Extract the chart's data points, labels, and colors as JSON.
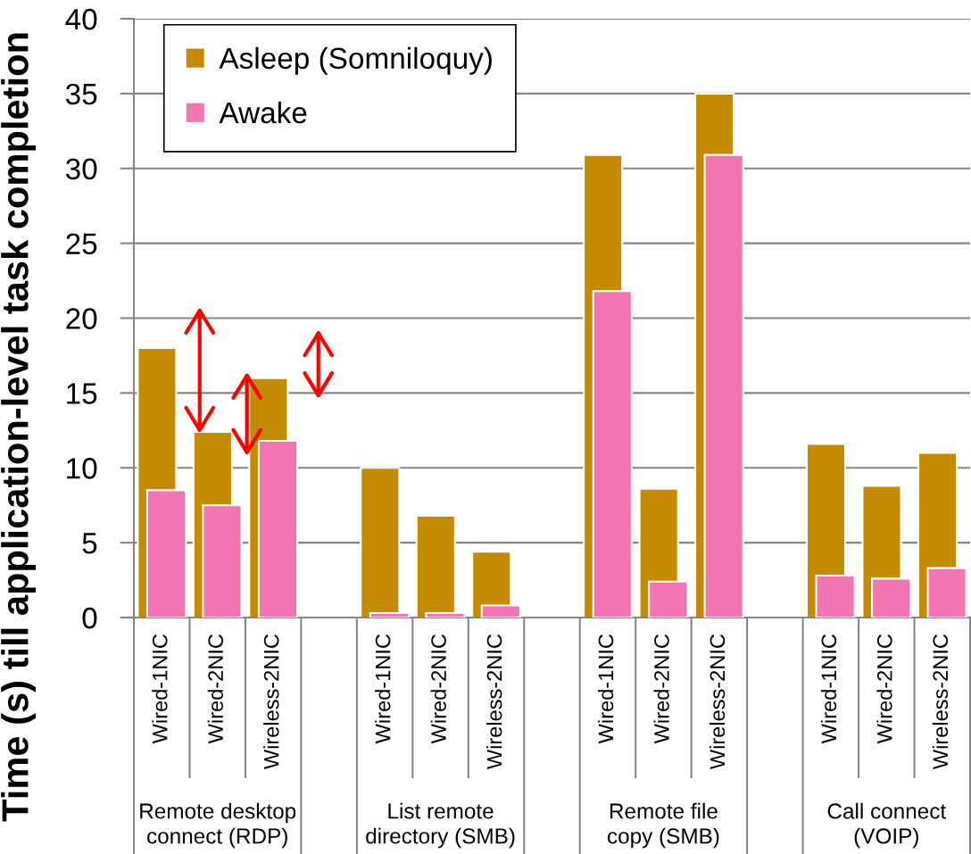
{
  "chart_data": {
    "type": "bar",
    "ylabel": "Time (s) till application-level task completion",
    "categories": [
      "Wired-1NIC",
      "Wired-2NIC",
      "Wireless-2NIC",
      null,
      "Wired-1NIC",
      "Wired-2NIC",
      "Wireless-2NIC",
      null,
      "Wired-1NIC",
      "Wired-2NIC",
      "Wireless-2NIC",
      null,
      "Wired-1NIC",
      "Wired-2NIC",
      "Wireless-2NIC"
    ],
    "series": [
      {
        "name": "Asleep (Somniloquy)",
        "color": "#c48b00",
        "values": [
          18.0,
          12.4,
          16.0,
          null,
          10.0,
          6.8,
          4.4,
          null,
          30.9,
          8.6,
          35.0,
          null,
          11.6,
          8.8,
          11.0
        ]
      },
      {
        "name": "Awake",
        "color": "#f274b1",
        "values": [
          8.5,
          7.5,
          11.8,
          null,
          0.3,
          0.3,
          0.8,
          null,
          21.8,
          2.4,
          30.9,
          null,
          2.8,
          2.6,
          3.3
        ]
      }
    ],
    "ylim": [
      0,
      40
    ],
    "yticks": [
      0,
      5,
      10,
      15,
      20,
      25,
      30,
      35,
      40
    ],
    "grid": "y",
    "legend": "top left",
    "annotations": [
      "Remote desktop\nconnect (RDP)",
      "List remote\ndirectory (SMB)",
      "Remote file\ncopy (SMB)",
      "Call connect\n(VOIP)"
    ]
  }
}
